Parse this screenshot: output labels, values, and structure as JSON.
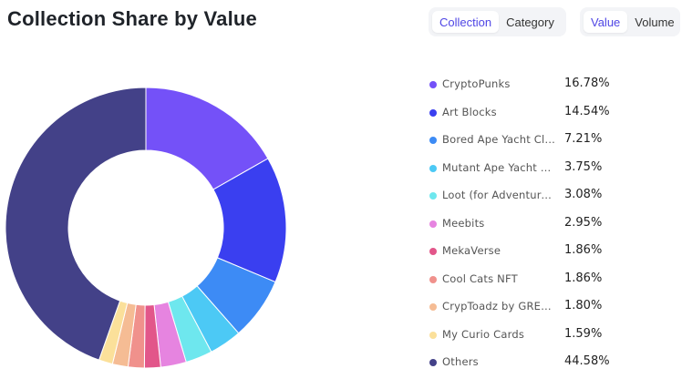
{
  "header": {
    "title": "Collection Share by Value"
  },
  "toggles": {
    "group1": {
      "options": [
        "Collection",
        "Category"
      ],
      "selected": "Collection"
    },
    "group2": {
      "options": [
        "Value",
        "Volume"
      ],
      "selected": "Value"
    }
  },
  "chart_data": {
    "type": "pie",
    "title": "Collection Share by Value",
    "donut": true,
    "legend_position": "right",
    "unit": "%",
    "slices": [
      {
        "name": "CryptoPunks",
        "value": 16.78,
        "label": "16.78%",
        "color": "#7451f8"
      },
      {
        "name": "Art Blocks",
        "value": 14.54,
        "label": "14.54%",
        "color": "#3a3ff0"
      },
      {
        "name": "Bored Ape Yacht Club",
        "value": 7.21,
        "label": "7.21%",
        "color": "#3d8bf5"
      },
      {
        "name": "Mutant Ape Yacht C...",
        "value": 3.75,
        "label": "3.75%",
        "color": "#4cc9f5"
      },
      {
        "name": "Loot (for Adventurers)",
        "value": 3.08,
        "label": "3.08%",
        "color": "#6ee7ee"
      },
      {
        "name": "Meebits",
        "value": 2.95,
        "label": "2.95%",
        "color": "#e684e0"
      },
      {
        "name": "MekaVerse",
        "value": 1.86,
        "label": "1.86%",
        "color": "#e2568a"
      },
      {
        "name": "Cool Cats NFT",
        "value": 1.86,
        "label": "1.86%",
        "color": "#f0918c"
      },
      {
        "name": "CrypToadz by GREM...",
        "value": 1.8,
        "label": "1.80%",
        "color": "#f5bc94"
      },
      {
        "name": "My Curio Cards",
        "value": 1.59,
        "label": "1.59%",
        "color": "#fbe09a"
      },
      {
        "name": "Others",
        "value": 44.58,
        "label": "44.58%",
        "color": "#434188"
      }
    ]
  }
}
